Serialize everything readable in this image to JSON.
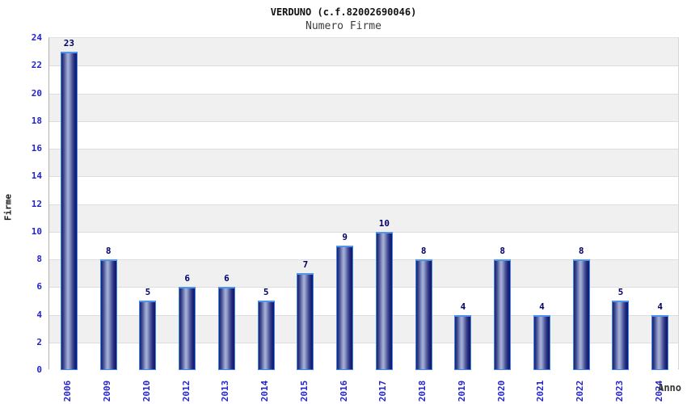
{
  "chart_data": {
    "type": "bar",
    "title": "VERDUNO (c.f.82002690046)",
    "subtitle": "Numero Firme",
    "xlabel": "Anno",
    "ylabel": "Firme",
    "categories": [
      "2006",
      "2009",
      "2010",
      "2012",
      "2013",
      "2014",
      "2015",
      "2016",
      "2017",
      "2018",
      "2019",
      "2020",
      "2021",
      "2022",
      "2023",
      "2024"
    ],
    "values": [
      23,
      8,
      5,
      6,
      6,
      5,
      7,
      9,
      10,
      8,
      4,
      8,
      4,
      8,
      5,
      4
    ],
    "ylim": [
      0,
      24
    ],
    "ytick_step": 2,
    "grid": "horizontal",
    "band_fill": "alternating",
    "legend": "none",
    "colors": {
      "tick_label": "#2424cb",
      "value_label": "#000066",
      "bar_edge_dark": "#1b2169",
      "bar_center_light": "#a9b2d8",
      "bar_border": "#3c86e8",
      "band_gray": "#f0f0f0",
      "gridline": "#dddddd",
      "axis_line": "#a8a8a8",
      "title": "#111111",
      "subtitle": "#3c3c3c"
    }
  }
}
